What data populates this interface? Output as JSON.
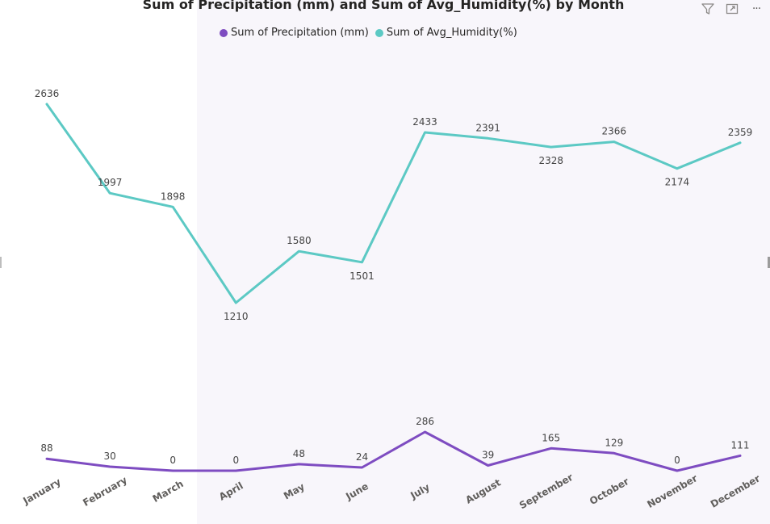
{
  "chart_data": {
    "type": "line",
    "title": "Sum of Precipitation (mm) and Sum of Avg_Humidity(%) by Month",
    "categories": [
      "January",
      "February",
      "March",
      "April",
      "May",
      "June",
      "July",
      "August",
      "September",
      "October",
      "November",
      "December"
    ],
    "series": [
      {
        "name": "Sum of Precipitation (mm)",
        "color": "#7e4cc1",
        "values": [
          88,
          30,
          0,
          0,
          48,
          24,
          286,
          39,
          165,
          129,
          0,
          111
        ]
      },
      {
        "name": "Sum of Avg_Humidity(%)",
        "color": "#5cc9c4",
        "values": [
          2636,
          1997,
          1898,
          1210,
          1580,
          1501,
          2433,
          2391,
          2328,
          2366,
          2174,
          2359
        ]
      }
    ],
    "legend_position": "top",
    "grid": false,
    "data_labels": true
  },
  "toolbar": {
    "filter_icon": "filter-icon",
    "focus_icon": "focus-mode-icon",
    "more_icon": "more-options-icon",
    "more_label": "···"
  }
}
